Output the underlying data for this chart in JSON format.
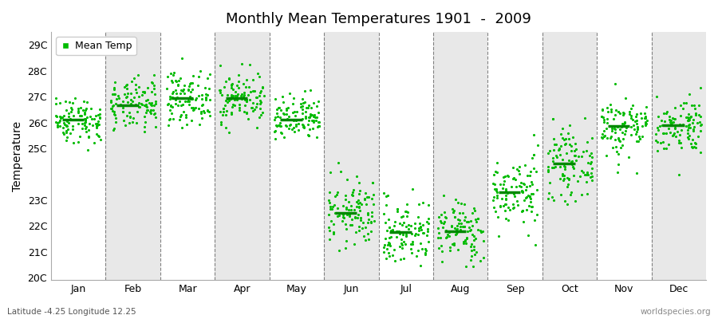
{
  "title": "Monthly Mean Temperatures 1901  -  2009",
  "ylabel": "Temperature",
  "bottom_left_label": "Latitude -4.25 Longitude 12.25",
  "bottom_right_label": "worldspecies.org",
  "months": [
    "Jan",
    "Feb",
    "Mar",
    "Apr",
    "May",
    "Jun",
    "Jul",
    "Aug",
    "Sep",
    "Oct",
    "Nov",
    "Dec"
  ],
  "month_means": [
    26.1,
    26.65,
    26.95,
    26.95,
    26.1,
    22.5,
    21.75,
    21.8,
    23.3,
    24.4,
    25.85,
    25.9
  ],
  "month_spreads": [
    0.45,
    0.5,
    0.5,
    0.5,
    0.45,
    0.65,
    0.65,
    0.6,
    0.7,
    0.65,
    0.6,
    0.55
  ],
  "ylim_min": 20.0,
  "ylim_max": 29.5,
  "yticks": [
    20,
    21,
    22,
    23,
    25,
    26,
    27,
    28,
    29
  ],
  "ytick_labels": [
    "20C",
    "21C",
    "22C",
    "23C",
    "25C",
    "26C",
    "27C",
    "28C",
    "29C"
  ],
  "dot_color": "#00BB00",
  "mean_line_color": "#008800",
  "white_band_color": "#ffffff",
  "gray_band_color": "#e8e8e8",
  "n_years": 109,
  "seed": 42
}
